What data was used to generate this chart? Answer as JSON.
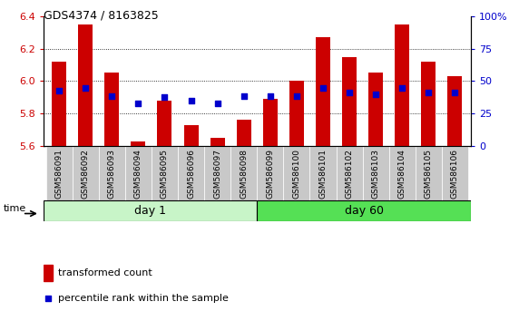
{
  "title": "GDS4374 / 8163825",
  "samples": [
    "GSM586091",
    "GSM586092",
    "GSM586093",
    "GSM586094",
    "GSM586095",
    "GSM586096",
    "GSM586097",
    "GSM586098",
    "GSM586099",
    "GSM586100",
    "GSM586101",
    "GSM586102",
    "GSM586103",
    "GSM586104",
    "GSM586105",
    "GSM586106"
  ],
  "red_values": [
    6.12,
    6.35,
    6.05,
    5.63,
    5.88,
    5.73,
    5.65,
    5.76,
    5.89,
    6.0,
    6.27,
    6.15,
    6.05,
    6.35,
    6.12,
    6.03
  ],
  "blue_values": [
    5.94,
    5.96,
    5.91,
    5.86,
    5.9,
    5.88,
    5.86,
    5.91,
    5.91,
    5.91,
    5.96,
    5.93,
    5.92,
    5.96,
    5.93,
    5.93
  ],
  "ylim_left": [
    5.6,
    6.4
  ],
  "ylim_right": [
    0,
    100
  ],
  "yticks_left": [
    5.6,
    5.8,
    6.0,
    6.2,
    6.4
  ],
  "yticks_right": [
    0,
    25,
    50,
    75,
    100
  ],
  "day1_count": 8,
  "day60_count": 8,
  "red_color": "#cc0000",
  "blue_color": "#0000cc",
  "bar_width": 0.55,
  "baseline": 5.6,
  "legend_red": "transformed count",
  "legend_blue": "percentile rank within the sample",
  "day1_label": "day 1",
  "day60_label": "day 60",
  "time_label": "time",
  "bg_plot": "#ffffff",
  "tick_label_color_left": "#cc0000",
  "tick_label_color_right": "#0000cc",
  "day1_color": "#c8f5c8",
  "day60_color": "#55e055",
  "xticklabel_bg": "#c8c8c8"
}
